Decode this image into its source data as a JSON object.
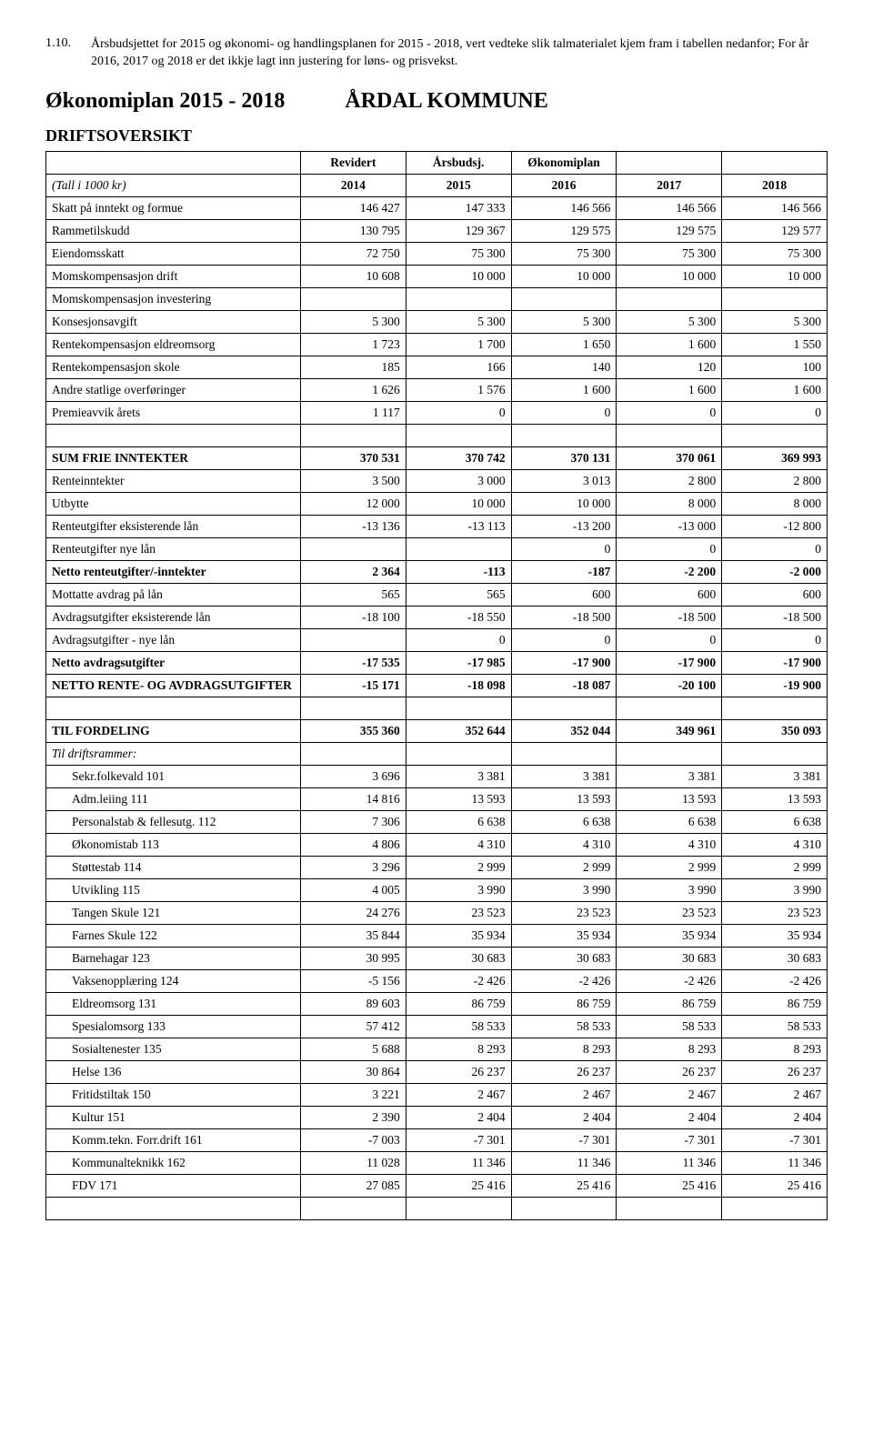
{
  "intro": {
    "number": "1.10.",
    "text": "Årsbudsjettet for 2015 og økonomi- og handlingsplanen for 2015 - 2018, vert vedteke slik talmaterialet kjem fram i tabellen nedanfor; For år 2016, 2017 og 2018 er det ikkje lagt inn justering for løns- og prisvekst."
  },
  "planTitle": {
    "left": "Økonomiplan 2015 - 2018",
    "right": "ÅRDAL KOMMUNE"
  },
  "sectionHeading": "DRIFTSOVERSIKT",
  "headerRow1": [
    "",
    "Revidert",
    "Årsbudsj.",
    "Økonomiplan",
    "",
    ""
  ],
  "headerRow2": [
    "(Tall i 1000 kr)",
    "2014",
    "2015",
    "2016",
    "2017",
    "2018"
  ],
  "rows": [
    {
      "label": "Skatt på inntekt og formue",
      "vals": [
        "146 427",
        "147 333",
        "146 566",
        "146 566",
        "146 566"
      ]
    },
    {
      "label": "Rammetilskudd",
      "vals": [
        "130 795",
        "129 367",
        "129 575",
        "129 575",
        "129 577"
      ]
    },
    {
      "label": "Eiendomsskatt",
      "vals": [
        "72 750",
        "75 300",
        "75 300",
        "75 300",
        "75 300"
      ]
    },
    {
      "label": "Momskompensasjon drift",
      "vals": [
        "10 608",
        "10 000",
        "10 000",
        "10 000",
        "10 000"
      ]
    },
    {
      "label": "Momskompensasjon investering",
      "vals": [
        "",
        "",
        "",
        "",
        ""
      ]
    },
    {
      "label": "Konsesjonsavgift",
      "vals": [
        "5 300",
        "5 300",
        "5 300",
        "5 300",
        "5 300"
      ]
    },
    {
      "label": "Rentekompensasjon eldreomsorg",
      "vals": [
        "1 723",
        "1 700",
        "1 650",
        "1 600",
        "1 550"
      ]
    },
    {
      "label": "Rentekompensasjon skole",
      "vals": [
        "185",
        "166",
        "140",
        "120",
        "100"
      ]
    },
    {
      "label": "Andre statlige overføringer",
      "vals": [
        "1 626",
        "1 576",
        "1 600",
        "1 600",
        "1 600"
      ]
    },
    {
      "label": "Premieavvik årets",
      "vals": [
        "1 117",
        "0",
        "0",
        "0",
        "0"
      ]
    },
    {
      "blank": true
    },
    {
      "label": "SUM FRIE INNTEKTER",
      "vals": [
        "370 531",
        "370 742",
        "370 131",
        "370 061",
        "369 993"
      ],
      "bold": true
    },
    {
      "label": "Renteinntekter",
      "vals": [
        "3 500",
        "3 000",
        "3 013",
        "2 800",
        "2 800"
      ]
    },
    {
      "label": "Utbytte",
      "vals": [
        "12 000",
        "10 000",
        "10 000",
        "8 000",
        "8 000"
      ]
    },
    {
      "label": "Renteutgifter eksisterende lån",
      "vals": [
        "-13 136",
        "-13 113",
        "-13 200",
        "-13 000",
        "-12 800"
      ]
    },
    {
      "label": "Renteutgifter nye lån",
      "vals": [
        "",
        "",
        "0",
        "0",
        "0"
      ]
    },
    {
      "label": "Netto renteutgifter/-inntekter",
      "vals": [
        "2 364",
        "-113",
        "-187",
        "-2 200",
        "-2 000"
      ],
      "bold": true
    },
    {
      "label": "Mottatte avdrag på lån",
      "vals": [
        "565",
        "565",
        "600",
        "600",
        "600"
      ]
    },
    {
      "label": "Avdragsutgifter eksisterende lån",
      "vals": [
        "-18 100",
        "-18 550",
        "-18 500",
        "-18 500",
        "-18 500"
      ]
    },
    {
      "label": "Avdragsutgifter - nye lån",
      "vals": [
        "",
        "0",
        "0",
        "0",
        "0"
      ]
    },
    {
      "label": "Netto avdragsutgifter",
      "vals": [
        "-17 535",
        "-17 985",
        "-17 900",
        "-17 900",
        "-17 900"
      ],
      "bold": true
    },
    {
      "label": "NETTO RENTE- OG AVDRAGSUTGIFTER",
      "vals": [
        "-15 171",
        "-18 098",
        "-18 087",
        "-20 100",
        "-19 900"
      ],
      "bold": true
    },
    {
      "blank": true
    },
    {
      "label": "TIL FORDELING",
      "vals": [
        "355 360",
        "352 644",
        "352 044",
        "349 961",
        "350 093"
      ],
      "bold": true
    },
    {
      "label": "Til driftsrammer:",
      "vals": [
        "",
        "",
        "",
        "",
        ""
      ],
      "italic": true
    },
    {
      "label": "Sekr.folkevald 101",
      "vals": [
        "3 696",
        "3 381",
        "3 381",
        "3 381",
        "3 381"
      ],
      "indent": true
    },
    {
      "label": "Adm.leiing 111",
      "vals": [
        "14 816",
        "13 593",
        "13 593",
        "13 593",
        "13 593"
      ],
      "indent": true
    },
    {
      "label": "Personalstab & fellesutg. 112",
      "vals": [
        "7 306",
        "6 638",
        "6 638",
        "6 638",
        "6 638"
      ],
      "indent": true
    },
    {
      "label": "Økonomistab 113",
      "vals": [
        "4 806",
        "4 310",
        "4 310",
        "4 310",
        "4 310"
      ],
      "indent": true
    },
    {
      "label": "Støttestab 114",
      "vals": [
        "3 296",
        "2 999",
        "2 999",
        "2 999",
        "2 999"
      ],
      "indent": true
    },
    {
      "label": "Utvikling 115",
      "vals": [
        "4 005",
        "3 990",
        "3 990",
        "3 990",
        "3 990"
      ],
      "indent": true
    },
    {
      "label": "Tangen Skule 121",
      "vals": [
        "24 276",
        "23 523",
        "23 523",
        "23 523",
        "23 523"
      ],
      "indent": true
    },
    {
      "label": "Farnes Skule 122",
      "vals": [
        "35 844",
        "35 934",
        "35 934",
        "35 934",
        "35 934"
      ],
      "indent": true
    },
    {
      "label": "Barnehagar 123",
      "vals": [
        "30 995",
        "30 683",
        "30 683",
        "30 683",
        "30 683"
      ],
      "indent": true
    },
    {
      "label": "Vaksenopplæring 124",
      "vals": [
        "-5 156",
        "-2 426",
        "-2 426",
        "-2 426",
        "-2 426"
      ],
      "indent": true
    },
    {
      "label": "Eldreomsorg 131",
      "vals": [
        "89 603",
        "86 759",
        "86 759",
        "86 759",
        "86 759"
      ],
      "indent": true
    },
    {
      "label": "Spesialomsorg 133",
      "vals": [
        "57 412",
        "58 533",
        "58 533",
        "58 533",
        "58 533"
      ],
      "indent": true
    },
    {
      "label": "Sosialtenester 135",
      "vals": [
        "5 688",
        "8 293",
        "8 293",
        "8 293",
        "8 293"
      ],
      "indent": true
    },
    {
      "label": "Helse 136",
      "vals": [
        "30 864",
        "26 237",
        "26 237",
        "26 237",
        "26 237"
      ],
      "indent": true
    },
    {
      "label": "Fritidstiltak 150",
      "vals": [
        "3 221",
        "2 467",
        "2 467",
        "2 467",
        "2 467"
      ],
      "indent": true
    },
    {
      "label": "Kultur 151",
      "vals": [
        "2 390",
        "2 404",
        "2 404",
        "2 404",
        "2 404"
      ],
      "indent": true
    },
    {
      "label": "Komm.tekn. Forr.drift 161",
      "vals": [
        "-7 003",
        "-7 301",
        "-7 301",
        "-7 301",
        "-7 301"
      ],
      "indent": true
    },
    {
      "label": "Kommunalteknikk 162",
      "vals": [
        "11 028",
        "11 346",
        "11 346",
        "11 346",
        "11 346"
      ],
      "indent": true
    },
    {
      "label": "FDV 171",
      "vals": [
        "27 085",
        "25 416",
        "25 416",
        "25 416",
        "25 416"
      ],
      "indent": true
    },
    {
      "blank": true
    }
  ]
}
